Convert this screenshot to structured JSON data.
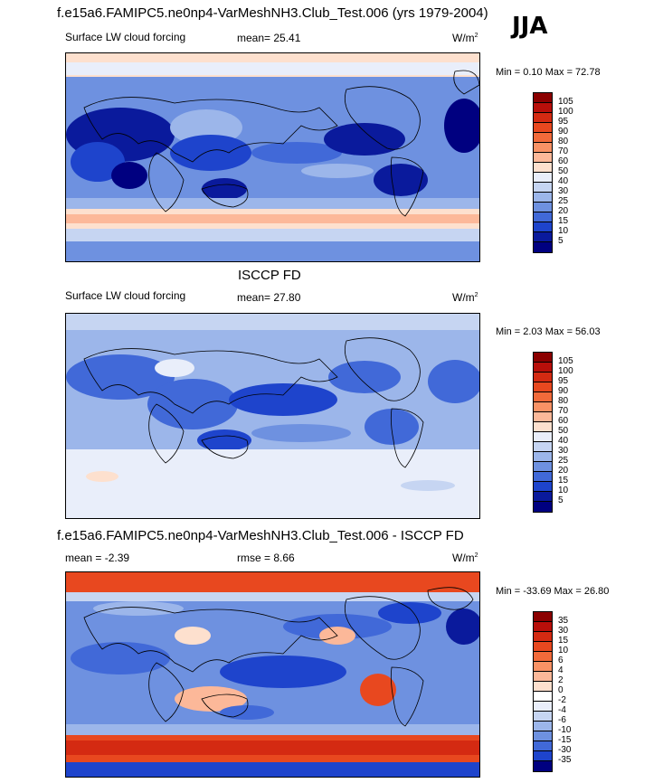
{
  "season": "JJA",
  "panels": [
    {
      "top_title": "f.e15a6.FAMIPC5.ne0np4-VarMeshNH3.Club_Test.006 (yrs 1979-2004)",
      "left_label": "Surface LW cloud forcing",
      "center_label": "mean=  25.41",
      "units": "W/m",
      "units_sup": "2",
      "minmax": "Min =   0.10 Max =  72.78",
      "levels": [
        "105",
        "100",
        "95",
        "90",
        "80",
        "70",
        "60",
        "50",
        "40",
        "30",
        "25",
        "20",
        "15",
        "10",
        "5"
      ],
      "colors": [
        "#8b0000",
        "#b80f0a",
        "#d42a12",
        "#e8481f",
        "#f26a3a",
        "#f99265",
        "#fcb899",
        "#fde0ce",
        "#e9eefa",
        "#c6d5f2",
        "#9cb6ea",
        "#6e91e0",
        "#4169d8",
        "#1e44cc",
        "#0a1a9c",
        "#000080"
      ]
    },
    {
      "top_title": "ISCCP FD",
      "left_label": "Surface LW cloud forcing",
      "center_label": "mean=  27.80",
      "units": "W/m",
      "units_sup": "2",
      "minmax": "Min =   2.03 Max =  56.03",
      "levels": [
        "105",
        "100",
        "95",
        "90",
        "80",
        "70",
        "60",
        "50",
        "40",
        "30",
        "25",
        "20",
        "15",
        "10",
        "5"
      ],
      "colors": [
        "#8b0000",
        "#b80f0a",
        "#d42a12",
        "#e8481f",
        "#f26a3a",
        "#f99265",
        "#fcb899",
        "#fde0ce",
        "#e9eefa",
        "#c6d5f2",
        "#9cb6ea",
        "#6e91e0",
        "#4169d8",
        "#1e44cc",
        "#0a1a9c",
        "#000080"
      ]
    },
    {
      "top_title": "f.e15a6.FAMIPC5.ne0np4-VarMeshNH3.Club_Test.006 - ISCCP FD",
      "left_label": "mean =  -2.39",
      "center_label": "rmse =   8.66",
      "units": "W/m",
      "units_sup": "2",
      "minmax": "Min = -33.69 Max =  26.80",
      "levels": [
        "35",
        "30",
        "15",
        "10",
        "6",
        "4",
        "2",
        "0",
        "-2",
        "-4",
        "-6",
        "-10",
        "-15",
        "-30",
        "-35"
      ],
      "colors": [
        "#8b0000",
        "#b80f0a",
        "#d42a12",
        "#e8481f",
        "#f26a3a",
        "#f99265",
        "#fcb899",
        "#fde0ce",
        "#ffffff",
        "#e9eefa",
        "#c6d5f2",
        "#9cb6ea",
        "#6e91e0",
        "#4169d8",
        "#1e44cc",
        "#000080"
      ]
    }
  ],
  "palette": {
    "land_blue": "#1e44cc",
    "mid_blue": "#4169d8",
    "light_blue": "#9cb6ea",
    "pale_blue": "#dde6f7",
    "peach": "#fcd5c0",
    "red": "#e0441e",
    "dark_navy": "#0a1a9c",
    "coast": "#000000"
  }
}
